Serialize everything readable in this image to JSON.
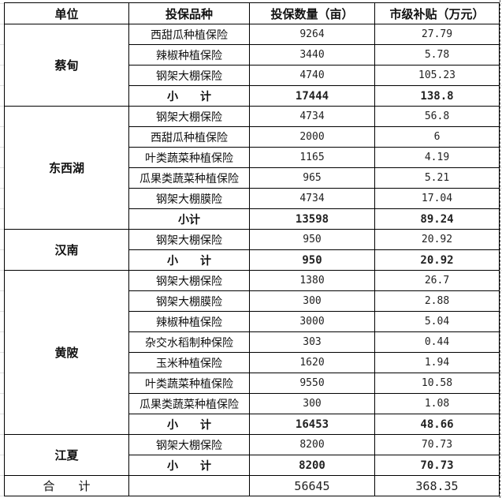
{
  "headers": [
    "单位",
    "投保品种",
    "投保数量（亩）",
    "市级补贴（万元）"
  ],
  "groups": [
    {
      "unit": "蔡甸",
      "rows": [
        [
          "西甜瓜种植保险",
          "9264",
          "27.79"
        ],
        [
          "辣椒种植保险",
          "3440",
          "5.78"
        ],
        [
          "钢架大棚保险",
          "4740",
          "105.23"
        ]
      ],
      "subtotal": [
        "小　　计",
        "17444",
        "138.8"
      ]
    },
    {
      "unit": "东西湖",
      "rows": [
        [
          "钢架大棚保险",
          "4734",
          "56.8"
        ],
        [
          "西甜瓜种植保险",
          "2000",
          "6"
        ],
        [
          "叶类蔬菜种植保险",
          "1165",
          "4.19"
        ],
        [
          "瓜果类蔬菜种植保险",
          "965",
          "5.21"
        ],
        [
          "钢架大棚膜险",
          "4734",
          "17.04"
        ]
      ],
      "subtotal": [
        "小计",
        "13598",
        "89.24"
      ]
    },
    {
      "unit": "汉南",
      "rows": [
        [
          "钢架大棚保险",
          "950",
          "20.92"
        ]
      ],
      "subtotal": [
        "小　　计",
        "950",
        "20.92"
      ]
    },
    {
      "unit": "黄陂",
      "rows": [
        [
          "钢架大棚保险",
          "1380",
          "26.7"
        ],
        [
          "钢架大棚膜险",
          "300",
          "2.88"
        ],
        [
          "辣椒种植保险",
          "3000",
          "5.04"
        ],
        [
          "杂交水稻制种保险",
          "303",
          "0.44"
        ],
        [
          "玉米种植保险",
          "1620",
          "1.94"
        ],
        [
          "叶类蔬菜种植保险",
          "9550",
          "10.58"
        ],
        [
          "瓜果类蔬菜种植保险",
          "300",
          "1.08"
        ]
      ],
      "subtotal": [
        "小　　计",
        "16453",
        "48.66"
      ]
    },
    {
      "unit": "江夏",
      "rows": [
        [
          "钢架大棚保险",
          "8200",
          "70.73"
        ]
      ],
      "subtotal": [
        "小　　计",
        "8200",
        "70.73"
      ]
    }
  ],
  "total": {
    "label": "合　　计",
    "variety": "",
    "quantity": "56645",
    "subsidy": "368.35"
  }
}
